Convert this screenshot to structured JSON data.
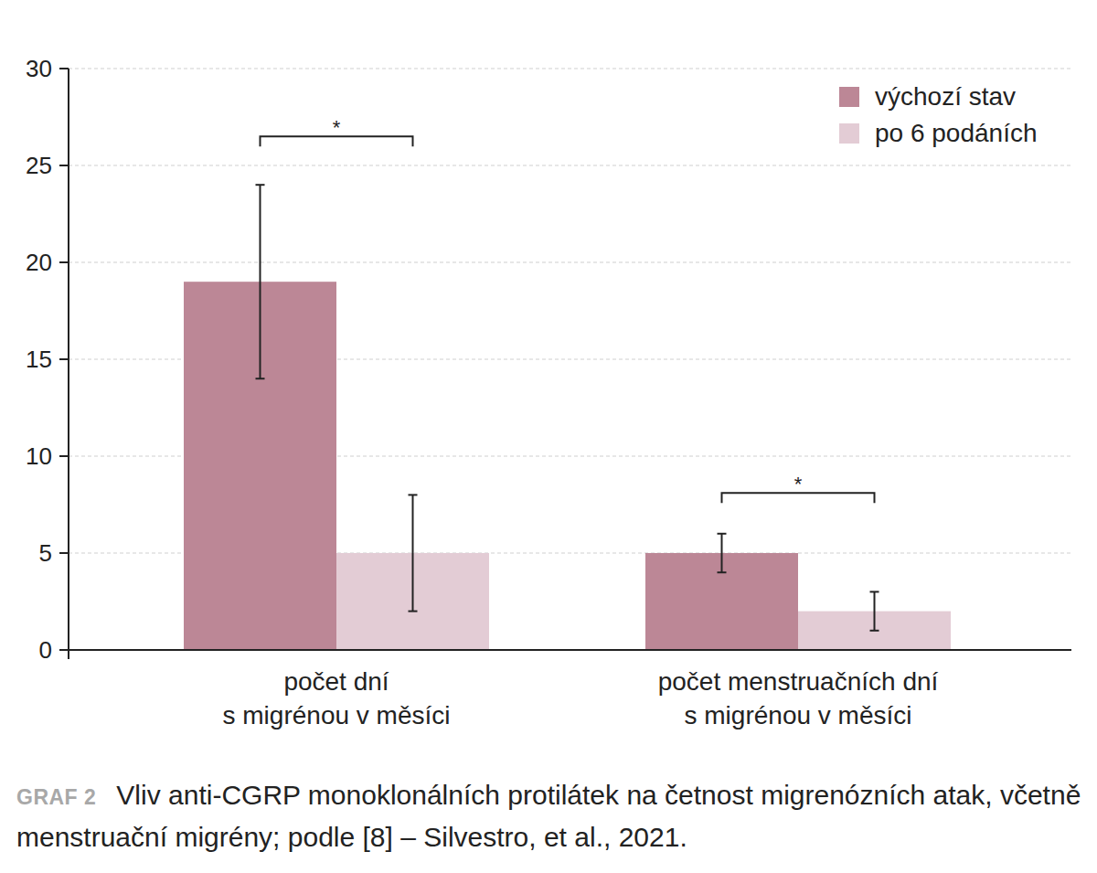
{
  "chart_data": {
    "type": "bar",
    "categories": [
      "počet dní\ns migrénou v měsíci",
      "počet menstruačních dní\ns migrénou v měsíci"
    ],
    "series": [
      {
        "name": "výchozí stav",
        "color": "#bc8796",
        "values": [
          19,
          5
        ],
        "errors": [
          5,
          1
        ]
      },
      {
        "name": "po 6 podáních",
        "color": "#e3ccd5",
        "values": [
          5,
          2
        ],
        "errors": [
          3,
          1
        ]
      }
    ],
    "ylim": [
      0,
      30
    ],
    "yticks": [
      0,
      5,
      10,
      15,
      20,
      25,
      30
    ],
    "grid": true,
    "legend": "upper right",
    "annotations": [
      {
        "text": "*",
        "category": 0,
        "y": 26.5
      },
      {
        "text": "*",
        "category": 1,
        "y": 8.1
      }
    ],
    "caption": {
      "label": "GRAF 2",
      "text": "Vliv anti-CGRP monoklonálních protilátek na četnost migrenózních atak, včetně menstruační migrény; podle [8] – Silvestro, et al., 2021."
    }
  }
}
